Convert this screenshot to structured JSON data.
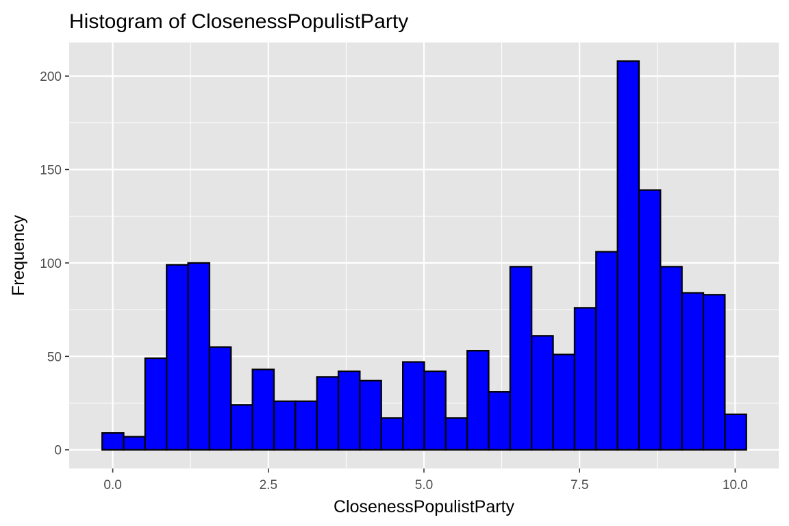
{
  "chart_data": {
    "type": "bar",
    "title": "Histogram of ClosenessPopulistParty",
    "xlabel": "ClosenessPopulistParty",
    "ylabel": "Frequency",
    "bin_width": 0.345,
    "x_start": -0.17,
    "values": [
      9,
      7,
      49,
      99,
      100,
      55,
      24,
      43,
      26,
      26,
      39,
      42,
      37,
      17,
      47,
      42,
      17,
      53,
      31,
      98,
      61,
      51,
      76,
      106,
      208,
      139,
      98,
      84,
      83,
      19
    ],
    "xlim": [
      -0.7,
      10.7
    ],
    "ylim": [
      -10,
      218
    ],
    "x_ticks": [
      0,
      2.5,
      5,
      7.5,
      10
    ],
    "x_tick_labels": [
      "0.0",
      "2.5",
      "5.0",
      "7.5",
      "10.0"
    ],
    "y_ticks": [
      0,
      50,
      100,
      150,
      200
    ],
    "y_tick_labels": [
      "0",
      "50",
      "100",
      "150",
      "200"
    ],
    "bar_fill": "#0000ff",
    "bar_outline": "#000000",
    "panel_background": "#e5e5e5",
    "grid_color": "#ffffff",
    "grid": true,
    "legend": "none"
  }
}
